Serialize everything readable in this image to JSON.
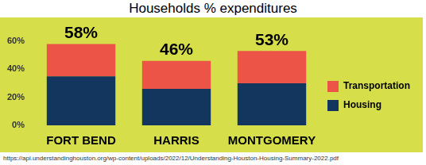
{
  "chart_data": {
    "type": "bar",
    "title": "Households % expenditures",
    "source": "https://api.understandinghouston.org/wp-content/uploads/2022/12/Understanding-Houston-Housing-Summary-2022.pdf",
    "categories": [
      "FORT BEND",
      "HARRIS",
      "MONTGOMERY"
    ],
    "series": [
      {
        "name": "Housing",
        "color": "#13365f",
        "values": [
          35,
          26,
          30
        ]
      },
      {
        "name": "Transportation",
        "color": "#ec5448",
        "values": [
          23,
          20,
          23
        ]
      }
    ],
    "totals": [
      58,
      46,
      53
    ],
    "total_labels": [
      "58%",
      "46%",
      "53%"
    ],
    "ylim": [
      0,
      60
    ],
    "yticks": [
      {
        "value": 0,
        "label": "0%"
      },
      {
        "value": 20,
        "label": "20%"
      },
      {
        "value": 40,
        "label": "40%"
      },
      {
        "value": 60,
        "label": "60%"
      }
    ],
    "stacked": true,
    "grid": false,
    "legend": "right"
  }
}
